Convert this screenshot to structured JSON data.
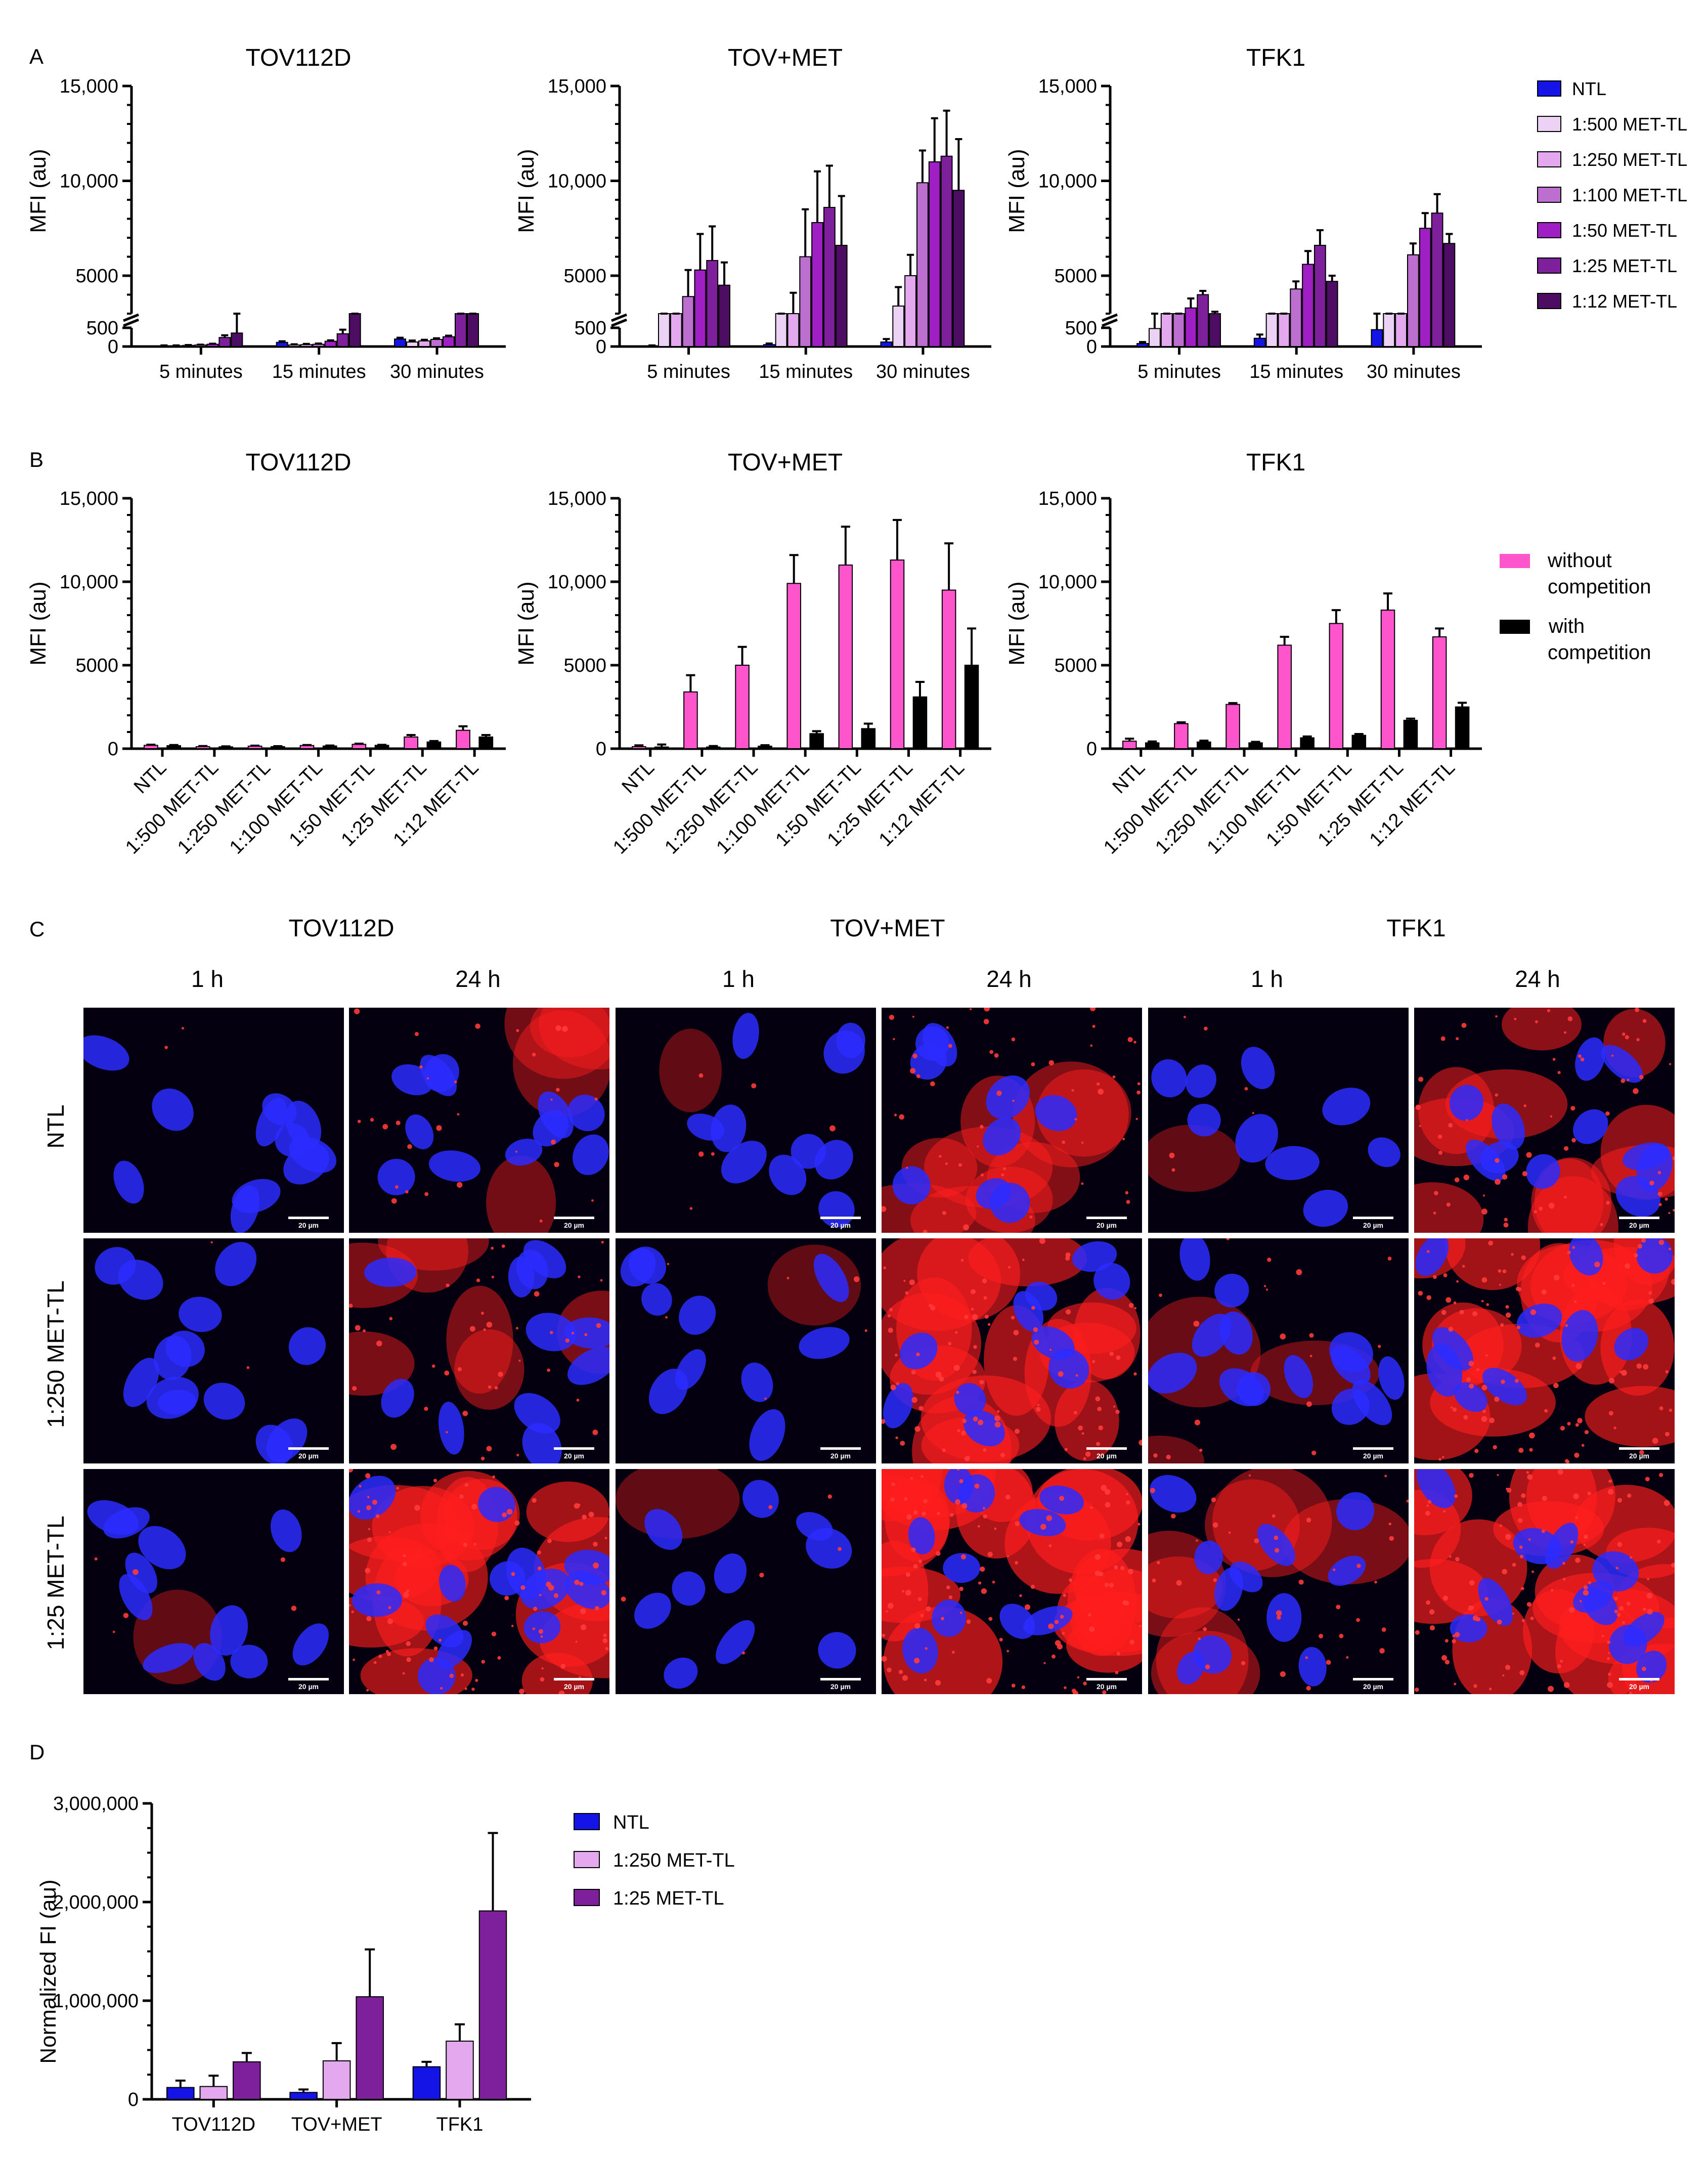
{
  "panel_letters": {
    "a": "A",
    "b": "B",
    "c": "C",
    "d": "D"
  },
  "colors": {
    "NTL": "#1414e6",
    "1:500 MET-TL": "#ecd2f5",
    "1:250 MET-TL": "#e4a8ef",
    "1:100 MET-TL": "#bc6fcf",
    "1:50 MET-TL": "#a01fc5",
    "1:25 MET-TL": "#7e1f9b",
    "1:12 MET-TL": "#4d0d63",
    "without_competition": "#ff55cc",
    "with_competition": "#000000",
    "nucleus_blue": "#2b2bff",
    "signal_red": "#ff1e1e"
  },
  "chart_data": [
    {
      "id": "A-TOV112D",
      "type": "bar",
      "title": "TOV112D",
      "ylabel": "MFI (au)",
      "categories": [
        "5 minutes",
        "15 minutes",
        "30 minutes"
      ],
      "y_axis_break": [
        500,
        3000
      ],
      "ylim": [
        0,
        15000
      ],
      "yticks": [
        "0",
        "500",
        "5000",
        "10,000",
        "15,000"
      ],
      "series": [
        {
          "name": "NTL",
          "values": [
            20,
            110,
            200
          ],
          "errors": [
            10,
            30,
            35
          ]
        },
        {
          "name": "1:500 MET-TL",
          "values": [
            20,
            40,
            120
          ],
          "errors": [
            10,
            20,
            40
          ]
        },
        {
          "name": "1:250 MET-TL",
          "values": [
            30,
            50,
            150
          ],
          "errors": [
            10,
            20,
            30
          ]
        },
        {
          "name": "1:100 MET-TL",
          "values": [
            40,
            60,
            190
          ],
          "errors": [
            10,
            20,
            30
          ]
        },
        {
          "name": "1:50 MET-TL",
          "values": [
            60,
            140,
            260
          ],
          "errors": [
            15,
            25,
            30
          ]
        },
        {
          "name": "1:25 MET-TL",
          "values": [
            240,
            340,
            540
          ],
          "errors": [
            60,
            110,
            120
          ]
        },
        {
          "name": "1:12 MET-TL",
          "values": [
            360,
            600,
            900
          ],
          "errors": [
            200,
            180,
            240
          ]
        }
      ]
    },
    {
      "id": "A-TOVMET",
      "type": "bar",
      "title": "TOV+MET",
      "ylabel": "MFI (au)",
      "categories": [
        "5 minutes",
        "15 minutes",
        "30 minutes"
      ],
      "y_axis_break": [
        500,
        3000
      ],
      "ylim": [
        0,
        15000
      ],
      "yticks": [
        "0",
        "500",
        "5000",
        "10,000",
        "15,000"
      ],
      "series": [
        {
          "name": "NTL",
          "values": [
            20,
            50,
            120
          ],
          "errors": [
            10,
            30,
            80
          ]
        },
        {
          "name": "1:500 MET-TL",
          "values": [
            1450,
            2000,
            3400
          ],
          "errors": [
            300,
            600,
            1000
          ]
        },
        {
          "name": "1:250 MET-TL",
          "values": [
            1750,
            3000,
            5000
          ],
          "errors": [
            650,
            1100,
            1100
          ]
        },
        {
          "name": "1:100 MET-TL",
          "values": [
            3900,
            6000,
            9900
          ],
          "errors": [
            1400,
            2500,
            1700
          ]
        },
        {
          "name": "1:50 MET-TL",
          "values": [
            5300,
            7800,
            11000
          ],
          "errors": [
            1900,
            2700,
            2300
          ]
        },
        {
          "name": "1:25 MET-TL",
          "values": [
            5800,
            8600,
            11300
          ],
          "errors": [
            1800,
            2200,
            2400
          ]
        },
        {
          "name": "1:12 MET-TL",
          "values": [
            4500,
            6600,
            9500
          ],
          "errors": [
            1200,
            2600,
            2700
          ]
        }
      ]
    },
    {
      "id": "A-TFK1",
      "type": "bar",
      "title": "TFK1",
      "ylabel": "MFI (au)",
      "categories": [
        "5 minutes",
        "15 minutes",
        "30 minutes"
      ],
      "y_axis_break": [
        500,
        3000
      ],
      "ylim": [
        0,
        15000
      ],
      "yticks": [
        "0",
        "500",
        "5000",
        "10,000",
        "15,000"
      ],
      "series": [
        {
          "name": "NTL",
          "values": [
            80,
            220,
            450
          ],
          "errors": [
            40,
            100,
            150
          ]
        },
        {
          "name": "1:500 MET-TL",
          "values": [
            480,
            1500,
            1700
          ],
          "errors": [
            60,
            80,
            80
          ]
        },
        {
          "name": "1:250 MET-TL",
          "values": [
            1200,
            1900,
            2700
          ],
          "errors": [
            80,
            100,
            80
          ]
        },
        {
          "name": "1:100 MET-TL",
          "values": [
            2100,
            4300,
            6100
          ],
          "errors": [
            100,
            400,
            600
          ]
        },
        {
          "name": "1:50 MET-TL",
          "values": [
            3300,
            5600,
            7500
          ],
          "errors": [
            500,
            700,
            800
          ]
        },
        {
          "name": "1:25 MET-TL",
          "values": [
            4000,
            6600,
            8300
          ],
          "errors": [
            200,
            800,
            1000
          ]
        },
        {
          "name": "1:12 MET-TL",
          "values": [
            2900,
            4700,
            6700
          ],
          "errors": [
            200,
            300,
            500
          ]
        }
      ]
    },
    {
      "id": "B-TOV112D",
      "type": "bar",
      "title": "TOV112D",
      "ylabel": "MFI (au)",
      "categories": [
        "NTL",
        "1:500 MET-TL",
        "1:250 MET-TL",
        "1:100 MET-TL",
        "1:50 MET-TL",
        "1:25 MET-TL",
        "1:12 MET-TL"
      ],
      "ylim": [
        0,
        15000
      ],
      "yticks": [
        "0",
        "5000",
        "10,000",
        "15,000"
      ],
      "series": [
        {
          "name": "without competition",
          "values": [
            200,
            120,
            150,
            190,
            260,
            700,
            1100
          ],
          "errors": [
            40,
            40,
            30,
            30,
            40,
            120,
            240
          ]
        },
        {
          "name": "with competition",
          "values": [
            180,
            110,
            120,
            160,
            200,
            400,
            700
          ],
          "errors": [
            40,
            30,
            30,
            30,
            30,
            60,
            120
          ]
        }
      ]
    },
    {
      "id": "B-TOVMET",
      "type": "bar",
      "title": "TOV+MET",
      "ylabel": "MFI (au)",
      "categories": [
        "NTL",
        "1:500 MET-TL",
        "1:250 MET-TL",
        "1:100 MET-TL",
        "1:50 MET-TL",
        "1:25 MET-TL",
        "1:12 MET-TL"
      ],
      "ylim": [
        0,
        15000
      ],
      "yticks": [
        "0",
        "5000",
        "10,000",
        "15,000"
      ],
      "series": [
        {
          "name": "without competition",
          "values": [
            120,
            3400,
            5000,
            9900,
            11000,
            11300,
            9500
          ],
          "errors": [
            80,
            1000,
            1100,
            1700,
            2300,
            2400,
            2800
          ]
        },
        {
          "name": "with competition",
          "values": [
            100,
            100,
            150,
            900,
            1200,
            3100,
            5000
          ],
          "errors": [
            150,
            60,
            60,
            150,
            300,
            900,
            2200
          ]
        }
      ]
    },
    {
      "id": "B-TFK1",
      "type": "bar",
      "title": "TFK1",
      "ylabel": "MFI (au)",
      "categories": [
        "NTL",
        "1:500 MET-TL",
        "1:250 MET-TL",
        "1:100 MET-TL",
        "1:50 MET-TL",
        "1:25 MET-TL",
        "1:12 MET-TL"
      ],
      "ylim": [
        0,
        15000
      ],
      "yticks": [
        "0",
        "5000",
        "10,000",
        "15,000"
      ],
      "series": [
        {
          "name": "without competition",
          "values": [
            450,
            1500,
            2650,
            6200,
            7500,
            8300,
            6700
          ],
          "errors": [
            150,
            80,
            80,
            500,
            800,
            1000,
            500
          ]
        },
        {
          "name": "with competition",
          "values": [
            350,
            400,
            350,
            650,
            800,
            1700,
            2500
          ],
          "errors": [
            80,
            80,
            60,
            80,
            80,
            100,
            250
          ]
        }
      ]
    },
    {
      "id": "D",
      "type": "bar",
      "title": "",
      "ylabel": "Normalized FI (au)",
      "categories": [
        "TOV112D",
        "TOV+MET",
        "TFK1"
      ],
      "ylim": [
        0,
        3000000
      ],
      "yticks": [
        "0",
        "1,000,000",
        "2,000,000",
        "3,000,000"
      ],
      "series": [
        {
          "name": "NTL",
          "values": [
            120000,
            70000,
            330000
          ],
          "errors": [
            70000,
            30000,
            50000
          ]
        },
        {
          "name": "1:250 MET-TL",
          "values": [
            130000,
            390000,
            590000
          ],
          "errors": [
            110000,
            180000,
            170000
          ]
        },
        {
          "name": "1:25 MET-TL",
          "values": [
            380000,
            1040000,
            1910000
          ],
          "errors": [
            90000,
            480000,
            790000
          ]
        }
      ]
    }
  ],
  "legend_A": [
    "NTL",
    "1:500 MET-TL",
    "1:250 MET-TL",
    "1:100 MET-TL",
    "1:50 MET-TL",
    "1:25 MET-TL",
    "1:12 MET-TL"
  ],
  "legend_B": [
    {
      "key": "without_competition",
      "lines": [
        "without",
        "competition"
      ]
    },
    {
      "key": "with_competition",
      "lines": [
        "with",
        "competition"
      ]
    }
  ],
  "legend_D": [
    "NTL",
    "1:250 MET-TL",
    "1:25 MET-TL"
  ],
  "panel_C": {
    "cell_lines": [
      "TOV112D",
      "TOV+MET",
      "TFK1"
    ],
    "timepoints": [
      "1 h",
      "24 h",
      "1 h",
      "24 h",
      "1 h",
      "24 h"
    ],
    "rows": [
      "NTL",
      "1:250 MET-TL",
      "1:25 MET-TL"
    ],
    "scale_bar": "20 µm",
    "red_signal_levels": [
      [
        0.02,
        0.25,
        0.05,
        0.45,
        0.05,
        0.55
      ],
      [
        0.02,
        0.35,
        0.05,
        0.75,
        0.15,
        0.8
      ],
      [
        0.05,
        0.8,
        0.05,
        0.95,
        0.35,
        0.9
      ]
    ]
  }
}
